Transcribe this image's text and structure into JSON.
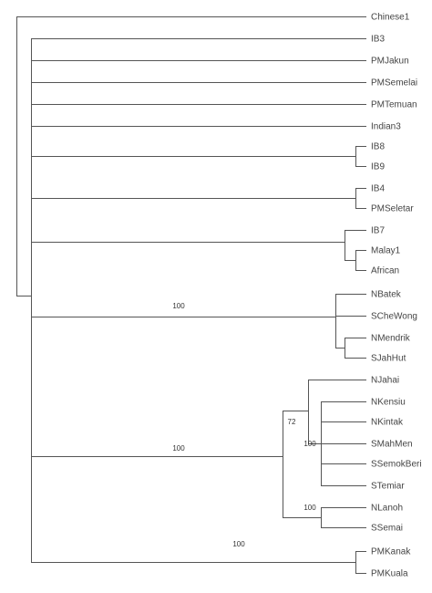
{
  "leaves": [
    "Chinese1",
    "IB3",
    "PMJakun",
    "PMSemelai",
    "PMTemuan",
    "Indian3",
    "IB8",
    "IB9",
    "IB4",
    "PMSeletar",
    "IB7",
    "Malay1",
    "African",
    "NBatek",
    "SCheWong",
    "NMendrik",
    "SJahHut",
    "NJahai",
    "NKensiu",
    "NKintak",
    "SMahMen",
    "SSemokBeri",
    "STemiar",
    "NLanoh",
    "SSemai",
    "PMKanak",
    "PMKuala"
  ],
  "support_labels": [
    100,
    72,
    100,
    100,
    100,
    100
  ]
}
